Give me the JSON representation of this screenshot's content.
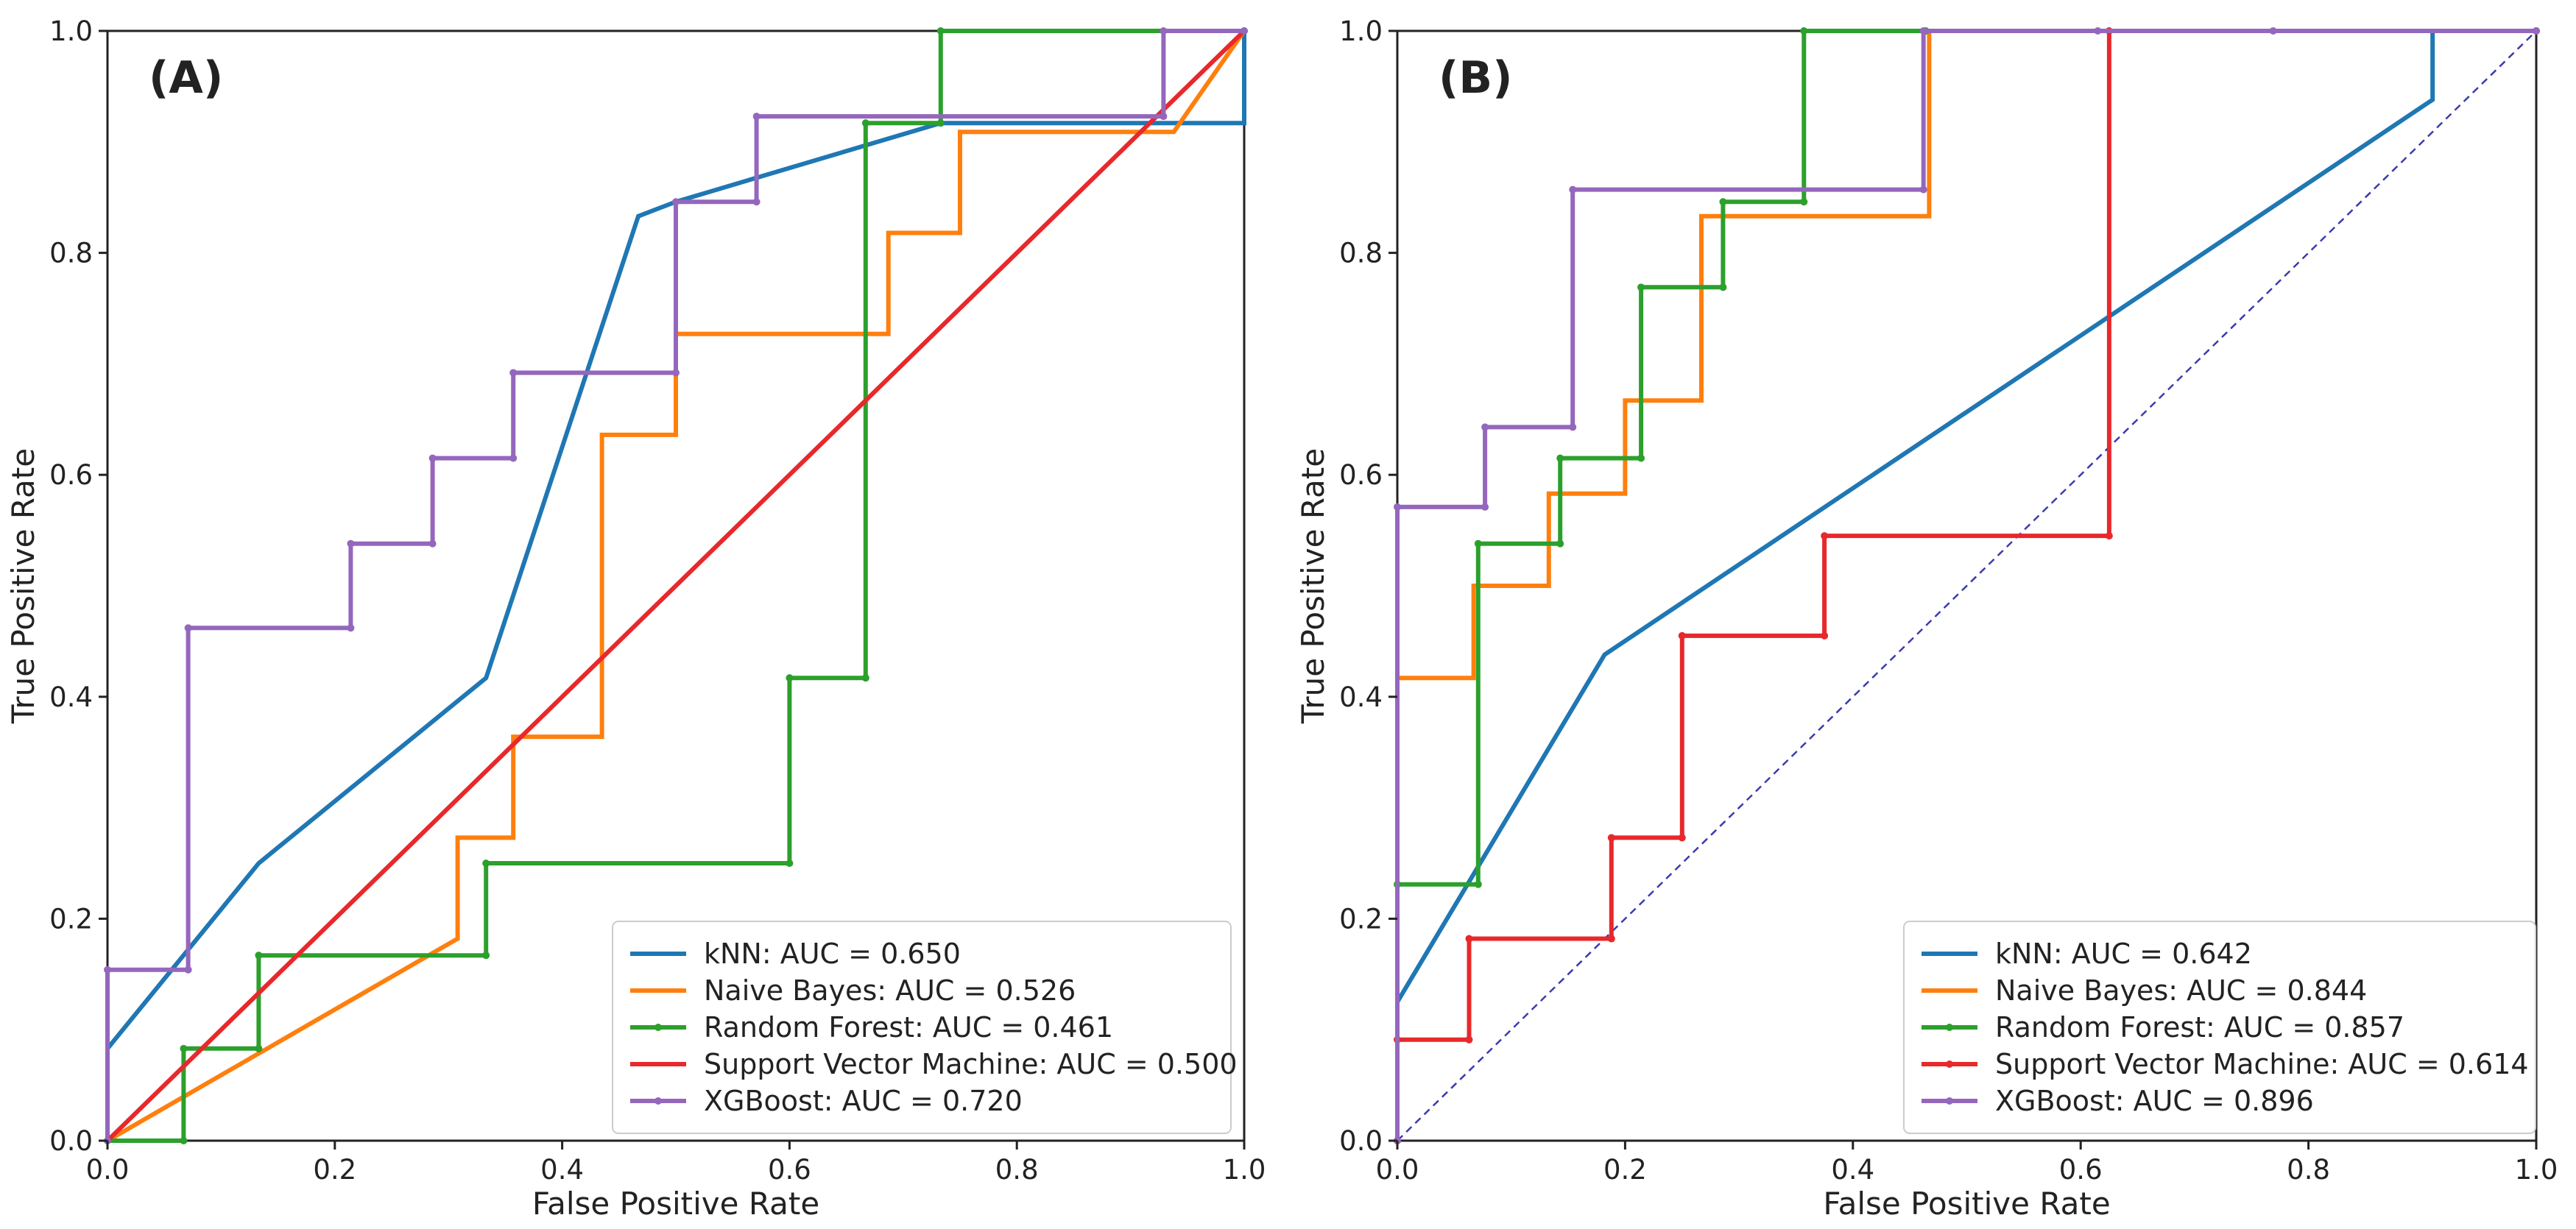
{
  "chart_data": [
    {
      "type": "line",
      "panel_label": "(A)",
      "xlabel": "False Positive Rate",
      "ylabel": "True Positive Rate",
      "xlim": [
        0.0,
        1.0
      ],
      "ylim": [
        0.0,
        1.0
      ],
      "xticks": [
        "0.0",
        "0.2",
        "0.4",
        "0.6",
        "0.8",
        "1.0"
      ],
      "yticks": [
        "0.0",
        "0.2",
        "0.4",
        "0.6",
        "0.8",
        "1.0"
      ],
      "grid": false,
      "legend_position": "lower-right",
      "diagonal_reference": false,
      "series": [
        {
          "name": "kNN",
          "label": "kNN: AUC = 0.650",
          "color": "#1f77b4",
          "markers": false,
          "x": [
            0.0,
            0.0,
            0.133,
            0.333,
            0.467,
            0.5,
            0.733,
            1.0,
            1.0
          ],
          "y": [
            0.0,
            0.083,
            0.25,
            0.417,
            0.833,
            0.846,
            0.917,
            0.917,
            1.0
          ]
        },
        {
          "name": "Naive Bayes",
          "label": "Naive Bayes: AUC = 0.526",
          "color": "#ff7f0e",
          "markers": false,
          "x": [
            0.0,
            0.308,
            0.308,
            0.357,
            0.357,
            0.435,
            0.435,
            0.5,
            0.5,
            0.687,
            0.687,
            0.75,
            0.75,
            0.938,
            1.0
          ],
          "y": [
            0.0,
            0.182,
            0.273,
            0.273,
            0.364,
            0.364,
            0.636,
            0.636,
            0.727,
            0.727,
            0.818,
            0.818,
            0.909,
            0.909,
            1.0
          ]
        },
        {
          "name": "Random Forest",
          "label": "Random Forest: AUC = 0.461",
          "color": "#2ca02c",
          "markers": true,
          "x": [
            0.0,
            0.067,
            0.067,
            0.133,
            0.133,
            0.333,
            0.333,
            0.6,
            0.6,
            0.667,
            0.667,
            0.733,
            0.733,
            1.0
          ],
          "y": [
            0.0,
            0.0,
            0.083,
            0.083,
            0.167,
            0.167,
            0.25,
            0.25,
            0.417,
            0.417,
            0.917,
            0.917,
            1.0,
            1.0
          ]
        },
        {
          "name": "Support Vector Machine",
          "label": "Support Vector Machine: AUC = 0.500",
          "color": "#e8282b",
          "markers": false,
          "x": [
            0.0,
            1.0
          ],
          "y": [
            0.0,
            1.0
          ]
        },
        {
          "name": "XGBoost",
          "label": "XGBoost: AUC = 0.720",
          "color": "#9467bd",
          "markers": true,
          "x": [
            0.0,
            0.0,
            0.071,
            0.071,
            0.214,
            0.214,
            0.286,
            0.286,
            0.357,
            0.357,
            0.5,
            0.5,
            0.571,
            0.571,
            0.929,
            0.929,
            1.0
          ],
          "y": [
            0.0,
            0.154,
            0.154,
            0.462,
            0.462,
            0.538,
            0.538,
            0.615,
            0.615,
            0.692,
            0.692,
            0.846,
            0.846,
            0.923,
            0.923,
            1.0,
            1.0
          ]
        }
      ]
    },
    {
      "type": "line",
      "panel_label": "(B)",
      "xlabel": "False Positive Rate",
      "ylabel": "True Positive Rate",
      "xlim": [
        0.0,
        1.0
      ],
      "ylim": [
        0.0,
        1.0
      ],
      "xticks": [
        "0.0",
        "0.2",
        "0.4",
        "0.6",
        "0.8",
        "1.0"
      ],
      "yticks": [
        "0.0",
        "0.2",
        "0.4",
        "0.6",
        "0.8",
        "1.0"
      ],
      "grid": false,
      "legend_position": "lower-right",
      "diagonal_reference": true,
      "diagonal_color": "#3b3bb0",
      "series": [
        {
          "name": "kNN",
          "label": "kNN: AUC = 0.642",
          "color": "#1f77b4",
          "markers": false,
          "x": [
            0.0,
            0.0,
            0.182,
            0.909,
            0.909,
            1.0
          ],
          "y": [
            0.0,
            0.125,
            0.438,
            0.938,
            1.0,
            1.0
          ]
        },
        {
          "name": "Naive Bayes",
          "label": "Naive Bayes: AUC = 0.844",
          "color": "#ff7f0e",
          "markers": false,
          "x": [
            0.0,
            0.0,
            0.067,
            0.067,
            0.133,
            0.133,
            0.2,
            0.2,
            0.267,
            0.267,
            0.467,
            0.467,
            1.0
          ],
          "y": [
            0.0,
            0.417,
            0.417,
            0.5,
            0.5,
            0.583,
            0.583,
            0.667,
            0.667,
            0.833,
            0.833,
            1.0,
            1.0
          ]
        },
        {
          "name": "Random Forest",
          "label": "Random Forest: AUC = 0.857",
          "color": "#2ca02c",
          "markers": true,
          "x": [
            0.0,
            0.0,
            0.071,
            0.071,
            0.143,
            0.143,
            0.214,
            0.214,
            0.286,
            0.286,
            0.357,
            0.357,
            0.464,
            1.0
          ],
          "y": [
            0.0,
            0.231,
            0.231,
            0.538,
            0.538,
            0.615,
            0.615,
            0.769,
            0.769,
            0.846,
            0.846,
            1.0,
            1.0,
            1.0
          ]
        },
        {
          "name": "Support Vector Machine",
          "label": "Support Vector Machine: AUC = 0.614",
          "color": "#e8282b",
          "markers": true,
          "x": [
            0.0,
            0.0,
            0.063,
            0.063,
            0.188,
            0.188,
            0.25,
            0.25,
            0.375,
            0.375,
            0.625,
            0.625,
            1.0
          ],
          "y": [
            0.0,
            0.091,
            0.091,
            0.182,
            0.182,
            0.273,
            0.273,
            0.455,
            0.455,
            0.545,
            0.545,
            1.0,
            1.0
          ]
        },
        {
          "name": "XGBoost",
          "label": "XGBoost: AUC = 0.896",
          "color": "#9467bd",
          "markers": true,
          "x": [
            0.0,
            0.0,
            0.077,
            0.077,
            0.154,
            0.154,
            0.462,
            0.462,
            0.615,
            0.769,
            1.0
          ],
          "y": [
            0.0,
            0.571,
            0.571,
            0.643,
            0.643,
            0.857,
            0.857,
            1.0,
            1.0,
            1.0,
            1.0
          ]
        }
      ]
    }
  ]
}
